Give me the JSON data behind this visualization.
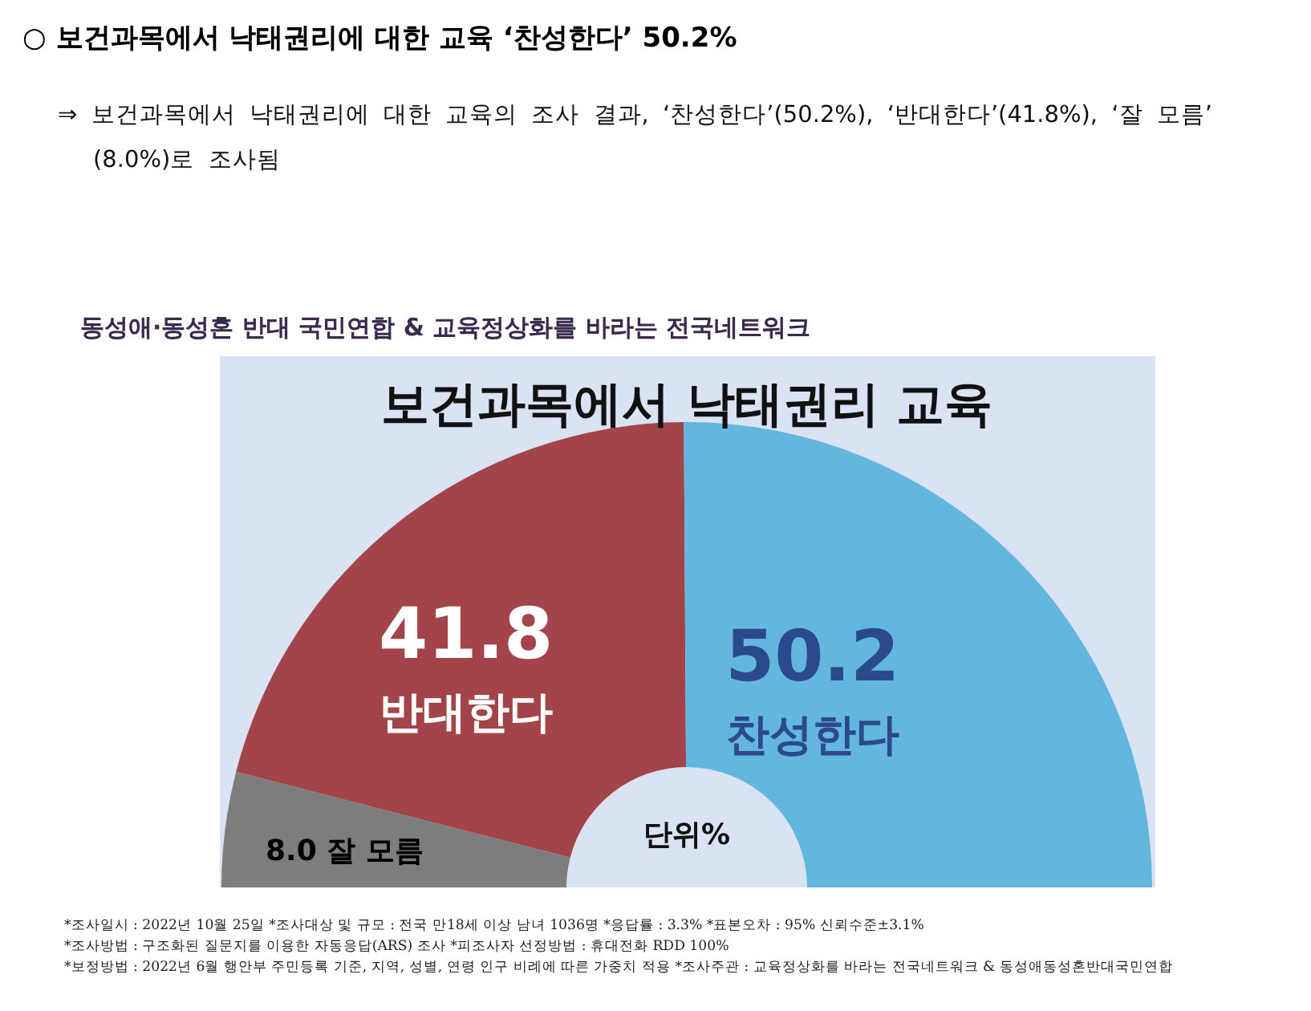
{
  "chart_data": {
    "type": "donut",
    "title": "보건과목에서 낙태권리 교육",
    "categories": [
      "잘 모름",
      "반대한다",
      "찬성한다"
    ],
    "values": [
      8.0,
      41.8,
      50.2
    ],
    "value_labels": [
      "8.0",
      "41.8",
      "50.2"
    ],
    "colors": [
      "#7d7d7d",
      "#a3444b",
      "#63b6dd"
    ],
    "annotations": [
      "○ 보건과목에서 낙태권리에 대한 교육 ‘찬성한다’ 50.2%",
      "⇒ 보건과목에서 낙태권리에 대한 교육의 조사 결과, ‘찬성한다’(50.2%), ‘반대한다’(41.8%), ‘잘 모름’ (8.0%)로 조사됨",
      "동성애·동성혼 반대 국민연합 & 교육정상화를 바라는 전국네트워크",
      "단위%",
      "*조사일시 : 2022년 10월 25일  *조사대상 및 규모 : 전국 만18세 이상 남녀 1036명 *응답률 : 3.3%  *표본오차 : 95% 신뢰수준±3.1%",
      "*조사방법 : 구조화된 질문지를 이용한 자동응답(ARS) 조사 *피조사자 선정방법 : 휴대전화 RDD 100%",
      "*보정방법 : 2022년 6월 행안부 주민등록 기준, 지역, 성별, 연령 인구 비례에 따른 가중치 적용  *조사주관 : 교육정상화를 바라는 전국네트워크 & 동성애동성혼반대국민연합"
    ]
  }
}
